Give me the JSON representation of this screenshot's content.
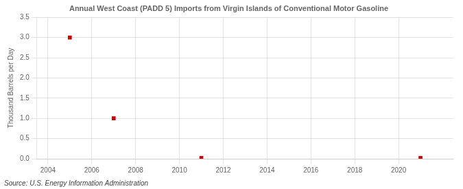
{
  "chart_data": {
    "type": "scatter",
    "title": "Annual West Coast (PADD 5) Imports from Virgin Islands of Conventional Motor Gasoline",
    "ylabel": "Thousand Barrels per Day",
    "annotation": "Source: U.S. Energy Information Administration",
    "x": [
      2005,
      2007,
      2011,
      2021
    ],
    "values": [
      3.0,
      1.0,
      0.02,
      0.02
    ],
    "color": "#cc0000",
    "marker": "square",
    "xlim": [
      2003.5,
      2022.5
    ],
    "xticks": [
      2004,
      2006,
      2008,
      2010,
      2012,
      2014,
      2016,
      2018,
      2020
    ],
    "ylim": [
      0.0,
      3.5
    ],
    "yticks": [
      {
        "value": 0.0,
        "label": "0.0"
      },
      0.5,
      {
        "value": 1.0,
        "label": "1.0"
      },
      1.5,
      {
        "value": 2.0,
        "label": "2.0"
      },
      2.5,
      {
        "value": 3.0,
        "label": "3.0"
      },
      3.5
    ],
    "grid": true
  }
}
